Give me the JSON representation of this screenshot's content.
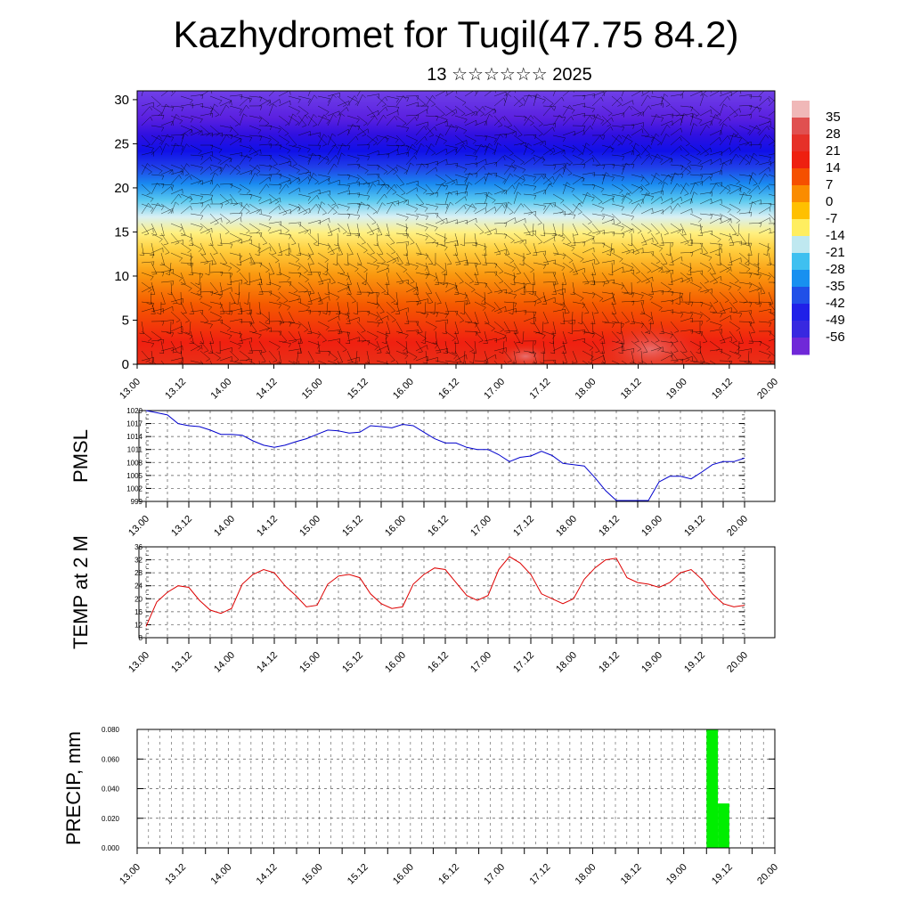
{
  "title": "Kazhydromet for Tugil(47.75 84.2)",
  "subtitle": "13 ☆☆☆☆☆☆ 2025",
  "colors": {
    "pmsl_line": "#0000cc",
    "temp_line": "#dd0000",
    "precip_bar": "#00ee00",
    "wind_barb": "#000000"
  },
  "time_ticks": [
    "13.00",
    "13.12",
    "14.00",
    "14.12",
    "15.00",
    "15.12",
    "16.00",
    "16.12",
    "17.00",
    "17.12",
    "18.00",
    "18.12",
    "19.00",
    "19.12",
    "20.00"
  ],
  "chart_data": [
    {
      "type": "heatmap",
      "name": "cross_section",
      "y_ticks": [
        "0",
        "5",
        "10",
        "15",
        "20",
        "25",
        "30"
      ],
      "y_range": [
        0,
        31
      ],
      "colorbar": {
        "labels": [
          "35",
          "28",
          "21",
          "14",
          "7",
          "0",
          "-7",
          "-14",
          "-21",
          "-28",
          "-35",
          "-42",
          "-49",
          "-56"
        ],
        "colors": [
          "#e05050",
          "#e63028",
          "#ee2010",
          "#f55000",
          "#fa8c00",
          "#ffc000",
          "#ffee60",
          "#bfe8f0",
          "#3fc0f0",
          "#1890f0",
          "#2050e8",
          "#2020e8",
          "#3828e0",
          "#7028d8"
        ],
        "max_color": "#f0b8b8"
      }
    },
    {
      "type": "line",
      "name": "PMSL",
      "ylabel": "PMSL",
      "y_ticks": [
        "999",
        "1002",
        "1005",
        "1008",
        "1011",
        "1014",
        "1017",
        "1020"
      ],
      "ylim": [
        999,
        1020
      ],
      "x": [
        "13.00",
        "13.03",
        "13.06",
        "13.09",
        "13.12",
        "13.15",
        "13.18",
        "13.21",
        "14.00",
        "14.03",
        "14.06",
        "14.09",
        "14.12",
        "14.15",
        "14.18",
        "14.21",
        "15.00",
        "15.03",
        "15.06",
        "15.09",
        "15.12",
        "15.15",
        "15.18",
        "15.21",
        "16.00",
        "16.03",
        "16.06",
        "16.09",
        "16.12",
        "16.15",
        "16.18",
        "16.21",
        "17.00",
        "17.03",
        "17.06",
        "17.09",
        "17.12",
        "17.15",
        "17.18",
        "17.21",
        "18.00",
        "18.03",
        "18.06",
        "18.09",
        "18.12",
        "18.15",
        "18.18",
        "18.21",
        "19.00",
        "19.03",
        "19.06",
        "19.09",
        "19.12",
        "19.15",
        "19.18",
        "19.21",
        "20.00"
      ],
      "values": [
        1020,
        1019.5,
        1019,
        1017,
        1016.5,
        1016.3,
        1015.5,
        1014.5,
        1014.5,
        1014.3,
        1013,
        1012,
        1011.5,
        1012,
        1012.8,
        1013.5,
        1014.5,
        1015.5,
        1015.3,
        1014.8,
        1015,
        1016.5,
        1016.3,
        1016,
        1016.8,
        1016.5,
        1015,
        1013.5,
        1012.5,
        1012.5,
        1011.5,
        1011,
        1011,
        1009.8,
        1008.2,
        1009.2,
        1009.5,
        1010.6,
        1009.6,
        1007.8,
        1007.5,
        1007.2,
        1004.5,
        1001.5,
        999.2,
        999.2,
        999.2,
        999.2,
        1003.5,
        1004.8,
        1004.8,
        1004.2,
        1005.8,
        1007.5,
        1008.2,
        1008.2,
        1009
      ]
    },
    {
      "type": "line",
      "name": "TEMP at 2 M",
      "ylabel": "TEMP at 2 M",
      "y_ticks": [
        "8",
        "12",
        "16",
        "20",
        "24",
        "28",
        "32",
        "36"
      ],
      "ylim": [
        8,
        36
      ],
      "x": [
        "13.00",
        "13.03",
        "13.06",
        "13.09",
        "13.12",
        "13.15",
        "13.18",
        "13.21",
        "14.00",
        "14.03",
        "14.06",
        "14.09",
        "14.12",
        "14.15",
        "14.18",
        "14.21",
        "15.00",
        "15.03",
        "15.06",
        "15.09",
        "15.12",
        "15.15",
        "15.18",
        "15.21",
        "16.00",
        "16.03",
        "16.06",
        "16.09",
        "16.12",
        "16.15",
        "16.18",
        "16.21",
        "17.00",
        "17.03",
        "17.06",
        "17.09",
        "17.12",
        "17.15",
        "17.18",
        "17.21",
        "18.00",
        "18.03",
        "18.06",
        "18.09",
        "18.12",
        "18.15",
        "18.18",
        "18.21",
        "19.00",
        "19.03",
        "19.06",
        "19.09",
        "19.12",
        "19.15",
        "19.18",
        "19.21",
        "20.00"
      ],
      "values": [
        11.5,
        19,
        22,
        24,
        23.5,
        19.5,
        16.5,
        15.5,
        17,
        24.5,
        27.5,
        29,
        28,
        24,
        21,
        17.5,
        18,
        24.5,
        27,
        27.5,
        26.5,
        21.5,
        18.5,
        17,
        17.5,
        24.5,
        27.5,
        29.5,
        29,
        25,
        21,
        19.5,
        21,
        29,
        33,
        31,
        27.5,
        21.5,
        20,
        18.5,
        20,
        26,
        29.5,
        32,
        32.5,
        26.5,
        25,
        24.5,
        23.5,
        25,
        28,
        29,
        26,
        21.5,
        18.5,
        17.5,
        18
      ]
    },
    {
      "type": "bar",
      "name": "PRECIP",
      "ylabel": "PRECIP, mm",
      "y_ticks": [
        "0.000",
        "0.020",
        "0.040",
        "0.060",
        "0.080"
      ],
      "ylim": [
        0,
        0.08
      ],
      "bars": [
        {
          "x_start": "19.06",
          "x_end": "19.09",
          "value": 0.08
        },
        {
          "x_start": "19.09",
          "x_end": "19.12",
          "value": 0.03
        }
      ]
    }
  ]
}
